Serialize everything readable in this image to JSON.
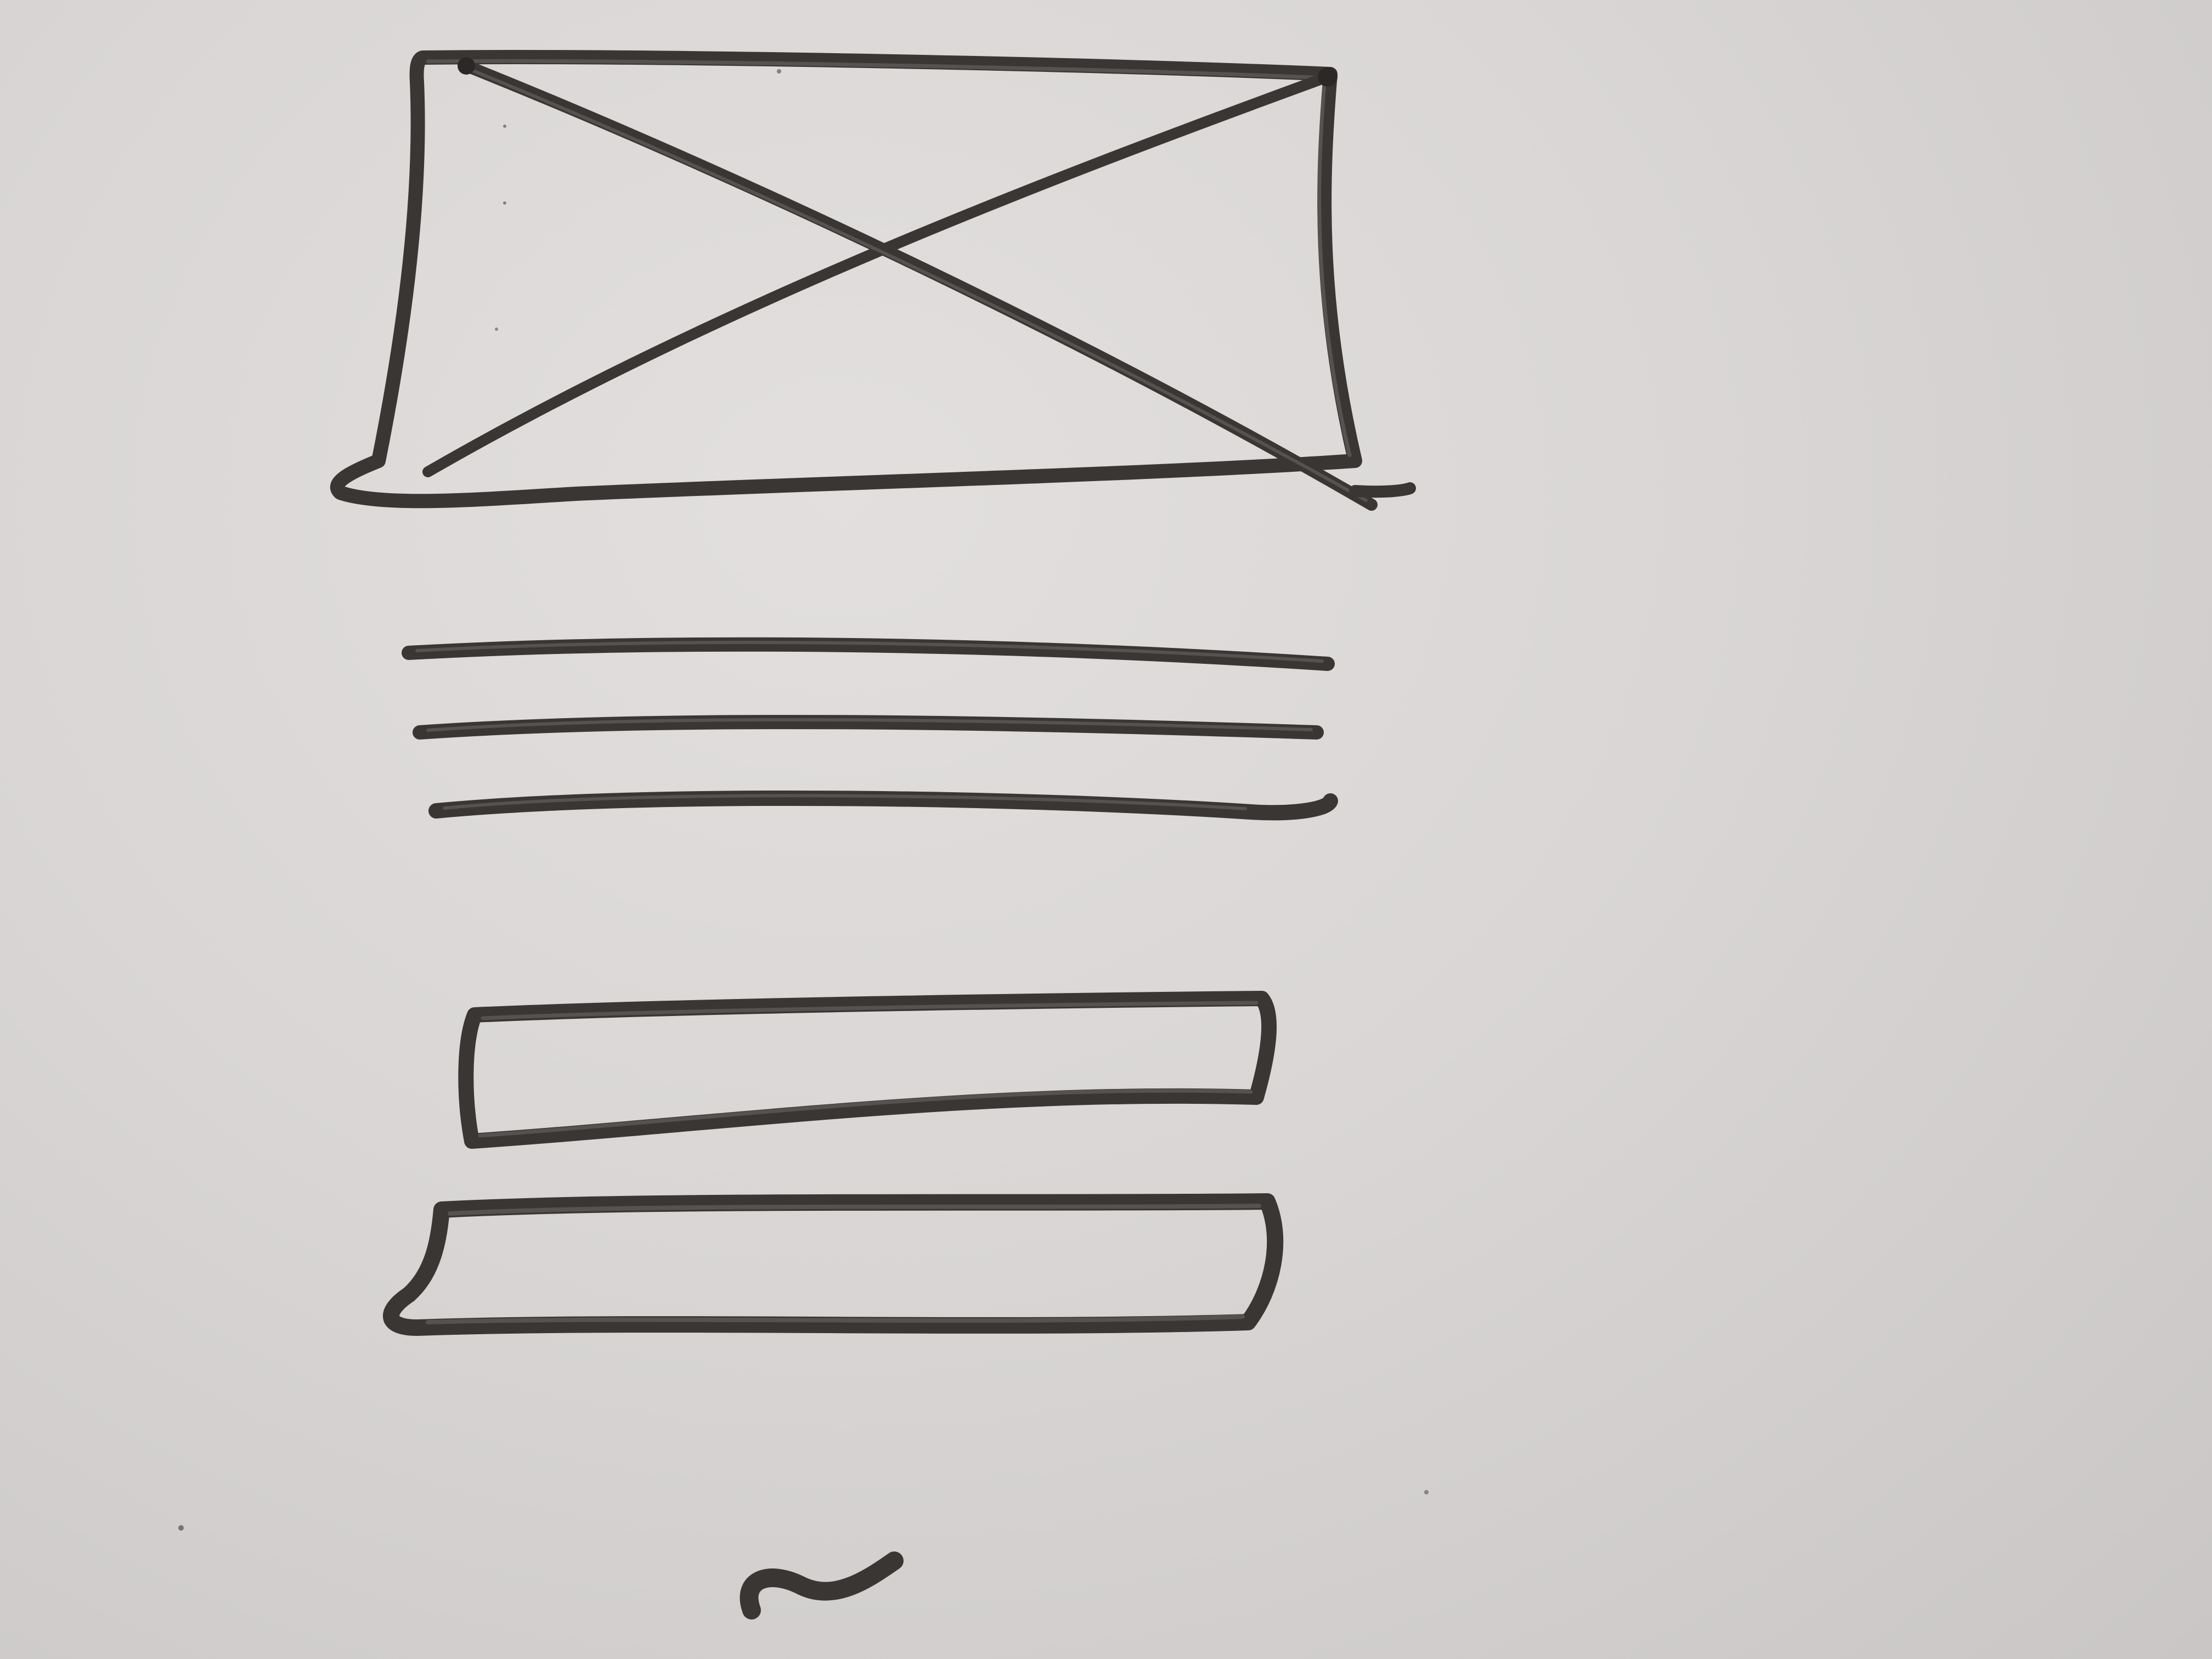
{
  "sketch": {
    "paper_color": "#d9d6d5",
    "ink_color": "#3a3634",
    "elements": [
      {
        "kind": "image-placeholder",
        "icon": "image-placeholder-x-box"
      },
      {
        "kind": "text-line"
      },
      {
        "kind": "text-line"
      },
      {
        "kind": "text-line"
      },
      {
        "kind": "input-field"
      },
      {
        "kind": "button"
      },
      {
        "kind": "tilde-mark",
        "glyph": "~"
      }
    ]
  }
}
